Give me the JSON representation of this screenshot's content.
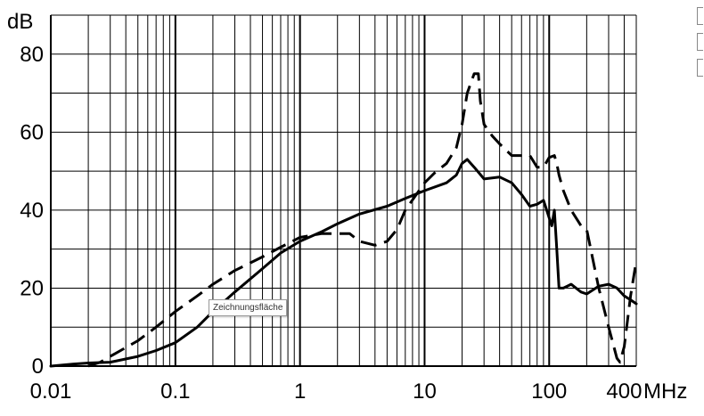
{
  "chart_data": {
    "type": "line",
    "x_scale": "log",
    "xlim": [
      0.01,
      500
    ],
    "ylim": [
      0,
      90
    ],
    "grid": true,
    "ylabel": "dB",
    "xunit": "MHz",
    "x_ticks": [
      {
        "value": 0.01,
        "label": "0.01"
      },
      {
        "value": 0.1,
        "label": "0.1"
      },
      {
        "value": 1,
        "label": "1"
      },
      {
        "value": 10,
        "label": "10"
      },
      {
        "value": 100,
        "label": "100"
      },
      {
        "value": 400,
        "label": "400"
      }
    ],
    "y_ticks": [
      {
        "value": 0,
        "label": "0"
      },
      {
        "value": 20,
        "label": "20"
      },
      {
        "value": 40,
        "label": "40"
      },
      {
        "value": 60,
        "label": "60"
      },
      {
        "value": 80,
        "label": "80"
      }
    ],
    "series": [
      {
        "style": "solid",
        "x": [
          0.01,
          0.015,
          0.02,
          0.03,
          0.05,
          0.07,
          0.1,
          0.15,
          0.2,
          0.3,
          0.5,
          0.7,
          1,
          1.5,
          2,
          3,
          5,
          7,
          10,
          15,
          18,
          20,
          22,
          25,
          30,
          40,
          50,
          60,
          70,
          80,
          90,
          100,
          105,
          110,
          115,
          120,
          130,
          150,
          180,
          200,
          250,
          300,
          350,
          400,
          450,
          500
        ],
        "y": [
          0,
          0.5,
          0.8,
          1,
          2.5,
          4,
          6,
          10,
          14,
          19,
          25,
          29,
          32,
          34.5,
          36.5,
          39,
          41,
          43,
          45,
          47,
          49,
          52,
          53,
          51,
          48,
          48.5,
          47,
          44,
          41,
          41.5,
          42.5,
          38,
          36,
          40,
          30,
          20,
          20,
          21,
          19,
          18.5,
          20.5,
          21,
          20,
          18,
          17,
          16
        ]
      },
      {
        "style": "dashed",
        "x": [
          0.01,
          0.02,
          0.025,
          0.03,
          0.05,
          0.07,
          0.1,
          0.15,
          0.2,
          0.3,
          0.5,
          0.7,
          1,
          1.5,
          2,
          2.5,
          3,
          4,
          5,
          6,
          7,
          10,
          12,
          15,
          18,
          20,
          22,
          25,
          27,
          28,
          30,
          35,
          40,
          50,
          60,
          70,
          80,
          90,
          100,
          110,
          115,
          120,
          130,
          150,
          180,
          200,
          250,
          300,
          350,
          370,
          400,
          450,
          500
        ],
        "y": [
          null,
          0,
          1,
          2.5,
          6.5,
          10,
          14,
          18,
          21,
          24.5,
          28,
          30.5,
          33,
          34,
          34,
          34,
          32,
          31,
          32,
          35,
          40,
          47,
          49.5,
          52,
          56,
          62,
          70,
          75,
          75,
          68,
          62,
          59,
          57,
          54,
          54,
          54,
          51,
          51,
          53.5,
          54,
          52,
          49,
          45,
          40,
          36,
          35,
          20,
          10,
          2,
          1,
          5,
          18,
          27
        ]
      }
    ]
  }
}
